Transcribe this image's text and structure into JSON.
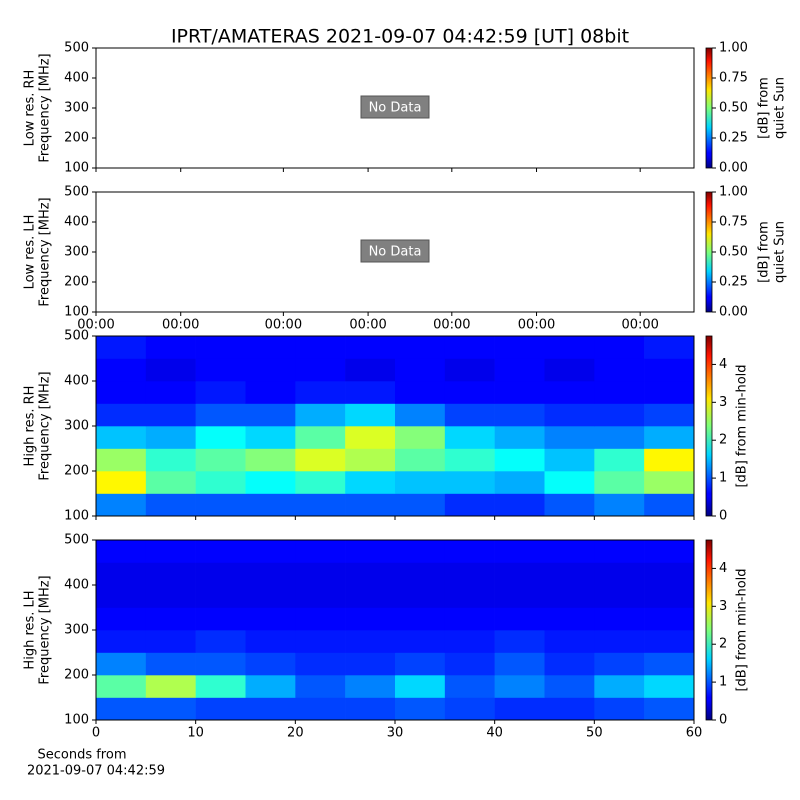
{
  "title": "IPRT/AMATERAS 2021-09-07 04:42:59 [UT]   08bit",
  "xlabel": [
    "Seconds from",
    "2021-09-07 04:42:59"
  ],
  "chart_data": [
    {
      "type": "empty",
      "ylabel": [
        "Low res. RH",
        "Frequency [MHz]"
      ],
      "annotation": "No Data",
      "xlim": [
        0,
        60
      ],
      "ylim": [
        100,
        500
      ],
      "yticks": [
        100,
        200,
        300,
        400,
        500
      ],
      "clim": [
        0,
        1
      ],
      "colorbar_label": [
        "[dB] from",
        "quiet Sun"
      ],
      "cticks": [
        {
          "value": 0,
          "label": "0.00"
        },
        {
          "value": 0.25,
          "label": "0.25"
        },
        {
          "value": 0.5,
          "label": "0.50"
        },
        {
          "value": 0.75,
          "label": "0.75"
        },
        {
          "value": 1,
          "label": "1.00"
        }
      ]
    },
    {
      "type": "empty",
      "ylabel": [
        "Low res. LH",
        "Frequency [MHz]"
      ],
      "annotation": "No Data",
      "xlim": [
        0,
        60
      ],
      "ylim": [
        100,
        500
      ],
      "yticks": [
        100,
        200,
        300,
        400,
        500
      ],
      "xticks": [
        {
          "value": 0,
          "label": "00:00"
        },
        {
          "value": 8.5,
          "label": "00:00"
        },
        {
          "value": 18.8,
          "label": "00:00"
        },
        {
          "value": 27.3,
          "label": "00:00"
        },
        {
          "value": 35.7,
          "label": "00:00"
        },
        {
          "value": 44.2,
          "label": "00:00"
        },
        {
          "value": 54.6,
          "label": "00:00"
        }
      ],
      "clim": [
        0,
        1
      ],
      "colorbar_label": [
        "[dB] from",
        "quiet Sun"
      ],
      "cticks": [
        {
          "value": 0,
          "label": "0.00"
        },
        {
          "value": 0.25,
          "label": "0.25"
        },
        {
          "value": 0.5,
          "label": "0.50"
        },
        {
          "value": 0.75,
          "label": "0.75"
        },
        {
          "value": 1,
          "label": "1.00"
        }
      ]
    },
    {
      "type": "heatmap",
      "ylabel": [
        "High res. RH",
        "Frequency [MHz]"
      ],
      "xlim": [
        0,
        60
      ],
      "ylim": [
        100,
        500
      ],
      "yticks": [
        100,
        200,
        300,
        400,
        500
      ],
      "clim": [
        0,
        4.75
      ],
      "cticks": [
        0,
        1,
        2,
        3,
        4
      ],
      "colorbar_label": [
        "[dB] from min-hold"
      ],
      "x": [
        0,
        5,
        10,
        15,
        20,
        25,
        30,
        35,
        40,
        45,
        50,
        55,
        60
      ],
      "y": [
        100,
        150,
        200,
        250,
        300,
        350,
        400,
        450,
        500
      ],
      "z": [
        [
          1.2,
          1.0,
          1.0,
          1.0,
          1.0,
          1.0,
          1.0,
          0.8,
          0.8,
          1.0,
          1.2,
          1.0
        ],
        [
          3.0,
          2.2,
          2.0,
          1.8,
          2.0,
          1.6,
          1.5,
          1.5,
          1.4,
          1.8,
          2.2,
          2.5
        ],
        [
          2.5,
          2.0,
          2.2,
          2.4,
          2.8,
          2.6,
          2.2,
          2.0,
          1.8,
          1.5,
          2.0,
          3.0
        ],
        [
          1.5,
          1.4,
          1.8,
          1.6,
          2.2,
          2.8,
          2.4,
          1.6,
          1.4,
          1.2,
          1.2,
          1.4
        ],
        [
          0.8,
          0.8,
          1.0,
          1.0,
          1.4,
          1.6,
          1.2,
          0.9,
          0.9,
          0.8,
          0.8,
          0.9
        ],
        [
          0.6,
          0.6,
          0.7,
          0.6,
          0.7,
          0.7,
          0.6,
          0.6,
          0.6,
          0.6,
          0.6,
          0.6
        ],
        [
          0.6,
          0.5,
          0.6,
          0.6,
          0.6,
          0.5,
          0.6,
          0.5,
          0.6,
          0.5,
          0.6,
          0.6
        ],
        [
          0.7,
          0.6,
          0.6,
          0.6,
          0.6,
          0.6,
          0.6,
          0.6,
          0.6,
          0.6,
          0.6,
          0.7
        ]
      ]
    },
    {
      "type": "heatmap",
      "ylabel": [
        "High res. LH",
        "Frequency [MHz]"
      ],
      "xlim": [
        0,
        60
      ],
      "ylim": [
        100,
        500
      ],
      "yticks": [
        100,
        200,
        300,
        400,
        500
      ],
      "xticks": [
        0,
        10,
        20,
        30,
        40,
        50,
        60
      ],
      "clim": [
        0,
        4.75
      ],
      "cticks": [
        0,
        1,
        2,
        3,
        4
      ],
      "colorbar_label": [
        "[dB] from min-hold"
      ],
      "x": [
        0,
        5,
        10,
        15,
        20,
        25,
        30,
        35,
        40,
        45,
        50,
        55,
        60
      ],
      "y": [
        100,
        150,
        200,
        250,
        300,
        350,
        400,
        450,
        500
      ],
      "z": [
        [
          1.0,
          1.0,
          0.9,
          0.9,
          0.9,
          0.9,
          1.0,
          0.9,
          0.8,
          0.8,
          0.9,
          1.0
        ],
        [
          2.2,
          2.6,
          2.0,
          1.4,
          1.0,
          1.2,
          1.6,
          1.0,
          1.2,
          1.0,
          1.4,
          1.6
        ],
        [
          1.2,
          1.0,
          1.0,
          0.9,
          0.8,
          0.8,
          0.9,
          0.8,
          1.0,
          0.8,
          0.9,
          1.0
        ],
        [
          0.7,
          0.7,
          0.8,
          0.7,
          0.7,
          0.7,
          0.7,
          0.7,
          0.8,
          0.7,
          0.7,
          0.7
        ],
        [
          0.6,
          0.6,
          0.6,
          0.6,
          0.6,
          0.6,
          0.6,
          0.6,
          0.6,
          0.6,
          0.6,
          0.6
        ],
        [
          0.5,
          0.5,
          0.5,
          0.5,
          0.5,
          0.5,
          0.5,
          0.5,
          0.5,
          0.5,
          0.5,
          0.5
        ],
        [
          0.5,
          0.5,
          0.5,
          0.5,
          0.5,
          0.5,
          0.5,
          0.5,
          0.5,
          0.5,
          0.5,
          0.5
        ],
        [
          0.6,
          0.6,
          0.6,
          0.6,
          0.6,
          0.6,
          0.6,
          0.6,
          0.6,
          0.6,
          0.6,
          0.6
        ]
      ]
    }
  ]
}
